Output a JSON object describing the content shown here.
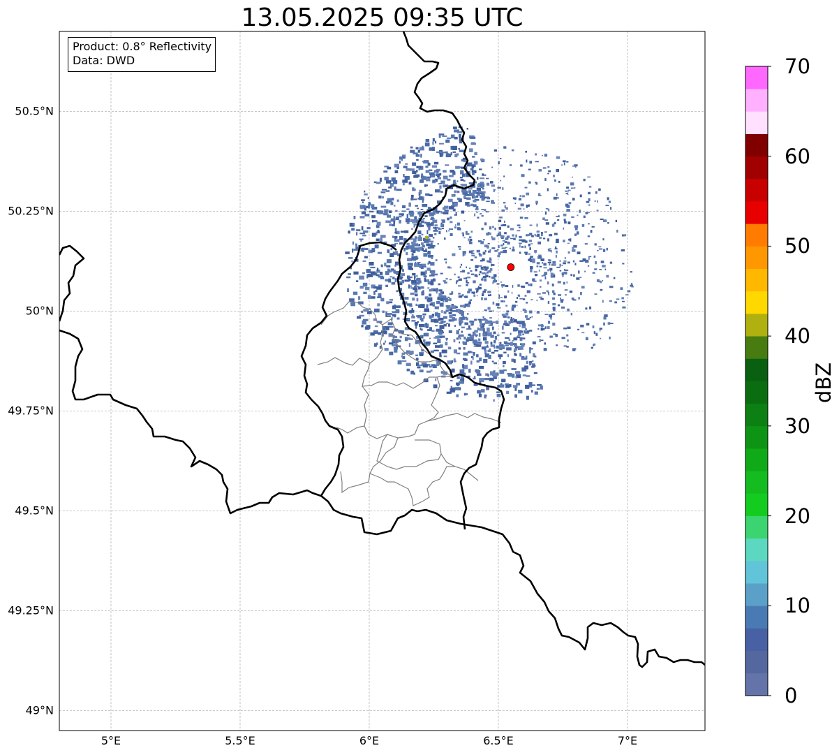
{
  "title": "13.05.2025 09:35 UTC",
  "info_box": {
    "product": "Product: 0.8° Reflectivity",
    "data_source": "Data: DWD"
  },
  "map": {
    "extent": {
      "lon_min": 4.8,
      "lon_max": 7.3,
      "lat_min": 48.95,
      "lat_max": 50.7
    },
    "gridlines": true,
    "lat_ticks": [
      {
        "value": 50.5,
        "label": "50.5°N"
      },
      {
        "value": 50.25,
        "label": "50.25°N"
      },
      {
        "value": 50.0,
        "label": "50°N"
      },
      {
        "value": 49.75,
        "label": "49.75°N"
      },
      {
        "value": 49.5,
        "label": "49.5°N"
      },
      {
        "value": 49.25,
        "label": "49.25°N"
      },
      {
        "value": 49.0,
        "label": "49°N"
      }
    ],
    "lon_ticks": [
      {
        "value": 5.0,
        "label": "5°E"
      },
      {
        "value": 5.5,
        "label": "5.5°E"
      },
      {
        "value": 6.0,
        "label": "6°E"
      },
      {
        "value": 6.5,
        "label": "6.5°E"
      },
      {
        "value": 7.0,
        "label": "7°E"
      }
    ],
    "radar_site": {
      "lon": 6.548,
      "lat": 50.11,
      "color": "#ff0000"
    },
    "echo_color": "#4a6aa8"
  },
  "colorbar": {
    "label": "dBZ",
    "vmin": 0,
    "vmax": 70,
    "step": 2.5,
    "ticks": [
      "0",
      "10",
      "20",
      "30",
      "40",
      "50",
      "60",
      "70"
    ],
    "colors": [
      "#6474a8",
      "#54689f",
      "#4860a4",
      "#4a7ab4",
      "#5aa0c8",
      "#62c4d8",
      "#5cd8c0",
      "#3cd470",
      "#14cc20",
      "#14bc20",
      "#10aa18",
      "#0e9414",
      "#0c8012",
      "#0a6e10",
      "#086010",
      "#487c10",
      "#b0b010",
      "#ffd800",
      "#ffb800",
      "#ff9800",
      "#ff7c00",
      "#e80000",
      "#c80000",
      "#a00000",
      "#800000",
      "#ffe0ff",
      "#ffb0ff",
      "#ff68ff",
      "#ec38ec"
    ]
  }
}
